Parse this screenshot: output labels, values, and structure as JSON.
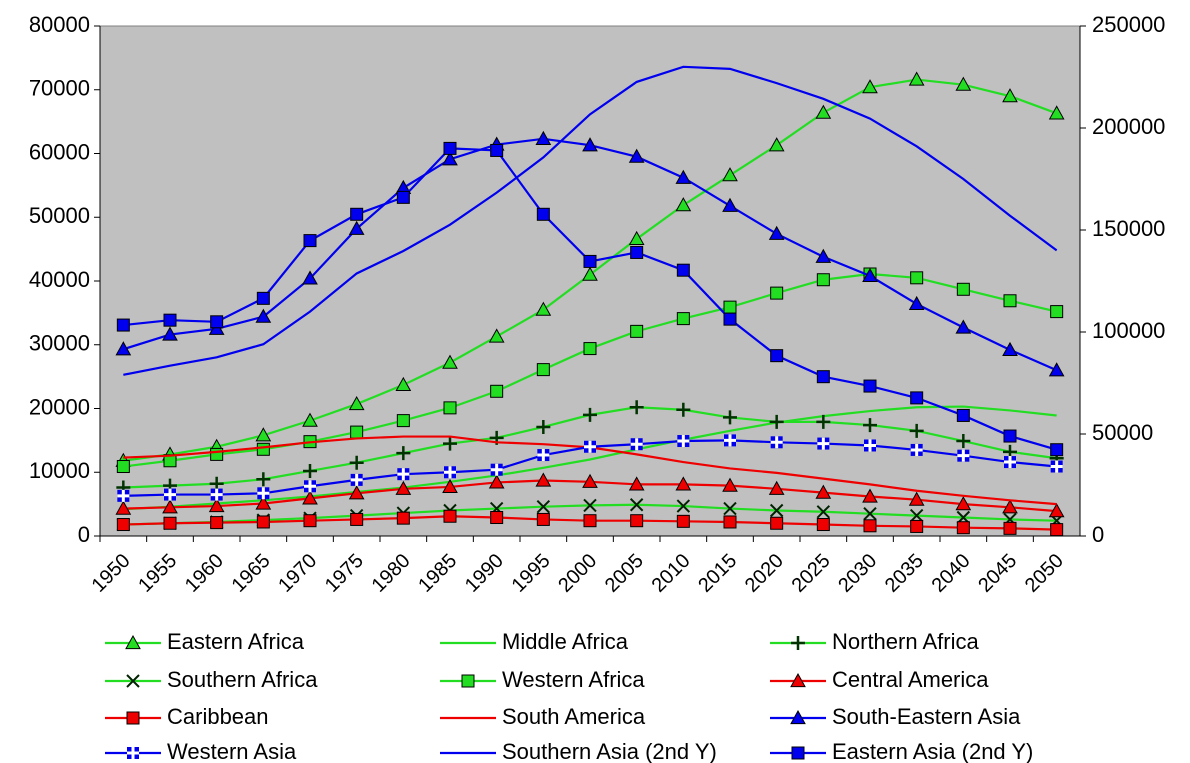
{
  "chart_data": {
    "type": "line",
    "categories": [
      "1950",
      "1955",
      "1960",
      "1965",
      "1970",
      "1975",
      "1980",
      "1985",
      "1990",
      "1995",
      "2000",
      "2005",
      "2010",
      "2015",
      "2020",
      "2025",
      "2030",
      "2035",
      "2040",
      "2045",
      "2050"
    ],
    "ylim": [
      0,
      80000
    ],
    "yticks": [
      0,
      10000,
      20000,
      30000,
      40000,
      50000,
      60000,
      70000,
      80000
    ],
    "y2lim": [
      0,
      250000
    ],
    "y2ticks": [
      0,
      50000,
      100000,
      150000,
      200000,
      250000
    ],
    "plot_background": "#c0c0c0",
    "grid": false,
    "series": [
      {
        "name": "Eastern Africa",
        "color": "#22dd22",
        "marker": "triangle",
        "values": [
          11800,
          12800,
          14000,
          15800,
          18100,
          20700,
          23700,
          27200,
          31300,
          35500,
          41000,
          46600,
          51900,
          56600,
          61300,
          66400,
          70400,
          71600,
          70800,
          69000,
          66300
        ]
      },
      {
        "name": "Middle Africa",
        "color": "#22dd22",
        "marker": null,
        "values": [
          4200,
          4600,
          5100,
          5600,
          6200,
          6900,
          7600,
          8500,
          9500,
          10700,
          12000,
          13600,
          15100,
          16500,
          17800,
          18800,
          19600,
          20200,
          20300,
          19700,
          18900
        ]
      },
      {
        "name": "Northern Africa",
        "color": "#22dd22",
        "marker": "plus",
        "values": [
          7600,
          7900,
          8200,
          8900,
          10200,
          11500,
          13000,
          14500,
          15400,
          17100,
          19000,
          20200,
          19800,
          18600,
          17900,
          17900,
          17400,
          16500,
          14900,
          13200,
          12200
        ]
      },
      {
        "name": "Southern Africa",
        "color": "#22dd22",
        "marker": "x",
        "values": [
          1800,
          2000,
          2200,
          2500,
          2800,
          3200,
          3600,
          4000,
          4300,
          4600,
          4800,
          4900,
          4700,
          4300,
          4000,
          3800,
          3500,
          3200,
          2900,
          2600,
          2400
        ]
      },
      {
        "name": "Western Africa",
        "color": "#22dd22",
        "marker": "square",
        "values": [
          10900,
          11800,
          12800,
          13600,
          14800,
          16300,
          18100,
          20100,
          22700,
          26100,
          29400,
          32100,
          34100,
          35900,
          38100,
          40200,
          41100,
          40500,
          38700,
          36900,
          35200
        ]
      },
      {
        "name": "Central America",
        "color": "#ee0000",
        "marker": "triangle",
        "values": [
          4300,
          4500,
          4700,
          5100,
          5900,
          6700,
          7400,
          7700,
          8400,
          8700,
          8500,
          8100,
          8100,
          7900,
          7400,
          6800,
          6200,
          5700,
          5000,
          4500,
          3900
        ]
      },
      {
        "name": "Caribbean",
        "color": "#ee0000",
        "marker": "square",
        "values": [
          1800,
          2000,
          2100,
          2200,
          2400,
          2600,
          2800,
          3100,
          2900,
          2600,
          2400,
          2400,
          2300,
          2200,
          2000,
          1800,
          1600,
          1500,
          1300,
          1200,
          1000
        ]
      },
      {
        "name": "South America",
        "color": "#ee0000",
        "marker": null,
        "values": [
          12300,
          12600,
          13200,
          13900,
          14700,
          15300,
          15600,
          15600,
          14700,
          14400,
          13900,
          12800,
          11600,
          10600,
          9900,
          9000,
          8100,
          7100,
          6300,
          5600,
          5000
        ]
      },
      {
        "name": "South-Eastern Asia",
        "color": "#0000ee",
        "marker": "triangle",
        "values": [
          29300,
          31600,
          32500,
          34400,
          40400,
          48200,
          54600,
          59100,
          61400,
          62300,
          61300,
          59500,
          56200,
          51800,
          47400,
          43800,
          40800,
          36400,
          32700,
          29200,
          26000
        ]
      },
      {
        "name": "Western Asia",
        "color": "#0000ee",
        "marker": "square-cross",
        "values": [
          6300,
          6500,
          6500,
          6700,
          7800,
          8800,
          9700,
          10000,
          10400,
          12700,
          14000,
          14400,
          14900,
          15000,
          14700,
          14500,
          14200,
          13500,
          12600,
          11600,
          10900
        ]
      },
      {
        "name": "Southern Asia (2nd Y)",
        "color": "#0000ee",
        "marker": null,
        "axis": "y2",
        "values": [
          79000,
          83500,
          87600,
          94000,
          110000,
          128700,
          139700,
          152600,
          168300,
          185600,
          206700,
          222600,
          230000,
          229000,
          222000,
          214300,
          204600,
          191000,
          175000,
          157000,
          140000
        ]
      },
      {
        "name": "Eastern Asia (2nd Y)",
        "color": "#0000ee",
        "marker": "square",
        "axis": "y2",
        "values": [
          103400,
          105800,
          105000,
          116500,
          144800,
          157700,
          166000,
          190000,
          189000,
          157700,
          134600,
          139000,
          130300,
          106300,
          88400,
          78100,
          73500,
          67700,
          59100,
          49000,
          42300
        ]
      }
    ]
  }
}
